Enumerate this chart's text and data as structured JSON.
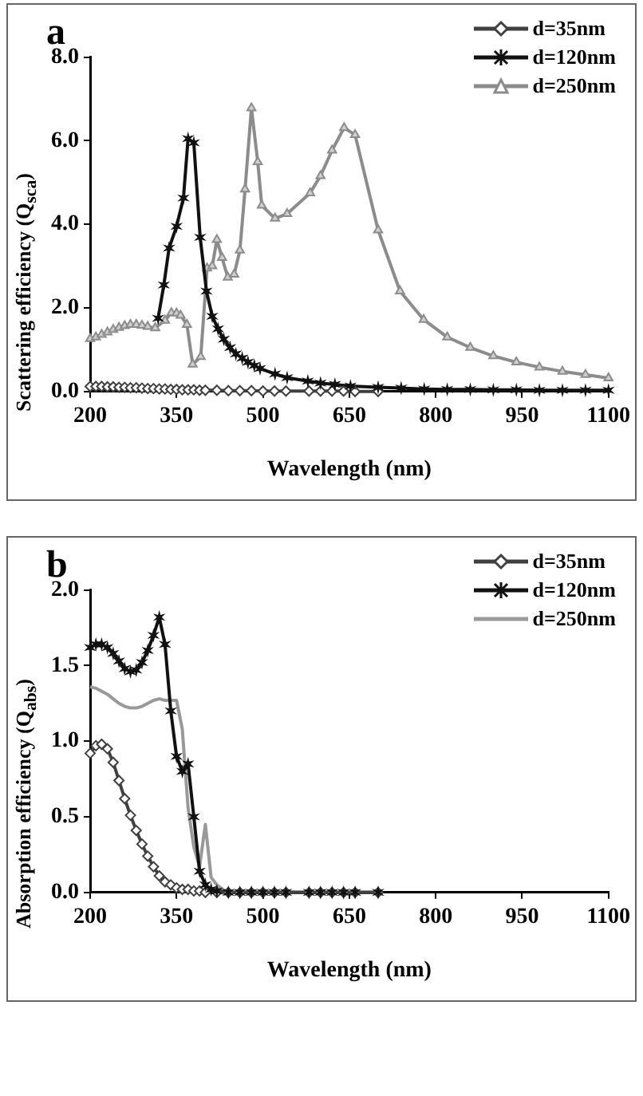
{
  "chart_data": [
    {
      "type": "line",
      "title": "a",
      "xlabel": "Wavelength (nm)",
      "ylabel": "Scattering efficiency (Q$_{sca}$)",
      "xlim": [
        200,
        1100
      ],
      "xticks": [
        200,
        350,
        500,
        650,
        800,
        950,
        1100
      ],
      "ylim": [
        0,
        8
      ],
      "yticks": [
        {
          "value": 0,
          "label": "0.0"
        },
        {
          "value": 2,
          "label": "2.0"
        },
        {
          "value": 4,
          "label": "4.0"
        },
        {
          "value": 6,
          "label": "6.0"
        },
        {
          "value": 8,
          "label": "8.0"
        }
      ],
      "grid": false,
      "legend": "top right",
      "series": [
        {
          "name": "d=35nm",
          "color": "#404040",
          "marker": "diamond",
          "x": [
            200,
            210,
            220,
            230,
            240,
            250,
            260,
            270,
            280,
            290,
            300,
            310,
            320,
            330,
            340,
            350,
            360,
            370,
            380,
            390,
            400,
            420,
            440,
            460,
            480,
            500,
            520,
            540,
            580,
            600,
            620,
            640,
            660,
            700
          ],
          "values": [
            0.12,
            0.12,
            0.12,
            0.11,
            0.11,
            0.1,
            0.1,
            0.09,
            0.09,
            0.08,
            0.07,
            0.07,
            0.06,
            0.06,
            0.05,
            0.05,
            0.04,
            0.04,
            0.04,
            0.03,
            0.03,
            0.03,
            0.02,
            0.02,
            0.02,
            0.01,
            0.01,
            0.01,
            0.01,
            0.01,
            0.01,
            0.01,
            0,
            0
          ]
        },
        {
          "name": "d=120nm",
          "color": "#111111",
          "marker": "cross",
          "x": [
            318,
            328,
            337,
            350,
            362,
            370,
            380,
            391,
            402,
            412,
            422,
            432,
            443,
            453,
            464,
            474,
            485,
            495,
            521,
            542,
            578,
            600,
            625,
            652,
            700,
            740,
            780,
            820,
            860,
            900,
            940,
            980,
            1020,
            1060,
            1100
          ],
          "values": [
            1.75,
            2.55,
            3.43,
            3.95,
            4.63,
            6.05,
            5.95,
            3.69,
            2.4,
            1.8,
            1.5,
            1.25,
            1.05,
            0.9,
            0.8,
            0.7,
            0.62,
            0.55,
            0.42,
            0.33,
            0.25,
            0.2,
            0.17,
            0.13,
            0.1,
            0.08,
            0.06,
            0.05,
            0.05,
            0.04,
            0.04,
            0.03,
            0.03,
            0.03,
            0.03
          ]
        },
        {
          "name": "d=250nm",
          "color": "#8c8c8c",
          "marker": "triangle",
          "x": [
            200,
            210,
            220,
            230,
            240,
            250,
            260,
            270,
            280,
            290,
            300,
            313,
            330,
            341,
            350,
            357,
            368,
            378,
            392,
            403,
            412,
            420,
            429,
            439,
            450,
            460,
            469,
            480,
            491,
            498,
            521,
            542,
            582,
            600,
            620,
            641,
            660,
            700,
            738,
            779,
            820,
            860,
            900,
            940,
            980,
            1020,
            1060,
            1100
          ],
          "values": [
            1.26,
            1.3,
            1.36,
            1.42,
            1.48,
            1.53,
            1.57,
            1.6,
            1.6,
            1.58,
            1.55,
            1.52,
            1.7,
            1.88,
            1.87,
            1.82,
            1.6,
            0.65,
            0.83,
            2.95,
            3.0,
            3.63,
            3.2,
            2.73,
            2.8,
            3.38,
            4.84,
            6.78,
            5.49,
            4.45,
            4.14,
            4.25,
            4.75,
            5.16,
            5.77,
            6.31,
            6.14,
            3.86,
            2.4,
            1.72,
            1.3,
            1.05,
            0.85,
            0.7,
            0.58,
            0.48,
            0.4,
            0.32
          ]
        }
      ]
    },
    {
      "type": "line",
      "title": "b",
      "xlabel": "Wavelength (nm)",
      "ylabel": "Absorption efficiency (Q$_{abs}$)",
      "xlim": [
        200,
        1100
      ],
      "xticks": [
        200,
        350,
        500,
        650,
        800,
        950,
        1100
      ],
      "ylim": [
        0,
        2
      ],
      "yticks": [
        {
          "value": 0,
          "label": "0.0"
        },
        {
          "value": 0.5,
          "label": "0.5"
        },
        {
          "value": 1,
          "label": "1.0"
        },
        {
          "value": 1.5,
          "label": "1.5"
        },
        {
          "value": 2,
          "label": "2.0"
        }
      ],
      "grid": false,
      "legend": "top right",
      "series": [
        {
          "name": "d=35nm",
          "color": "#404040",
          "marker": "diamond",
          "x": [
            200,
            210,
            220,
            230,
            240,
            250,
            260,
            270,
            280,
            290,
            300,
            310,
            320,
            330,
            340,
            350,
            360,
            370,
            380,
            390,
            400,
            420,
            440,
            460,
            480,
            500,
            520,
            540,
            580,
            600,
            620,
            640,
            660,
            700
          ],
          "values": [
            0.92,
            0.97,
            0.98,
            0.95,
            0.86,
            0.74,
            0.62,
            0.51,
            0.41,
            0.32,
            0.24,
            0.17,
            0.11,
            0.07,
            0.05,
            0.03,
            0.02,
            0.02,
            0.01,
            0.01,
            0,
            0,
            0,
            0,
            0,
            0,
            0,
            0,
            0,
            0,
            0,
            0,
            0,
            0
          ]
        },
        {
          "name": "d=120nm",
          "color": "#111111",
          "marker": "cross",
          "x": [
            200,
            210,
            220,
            230,
            240,
            250,
            260,
            270,
            280,
            290,
            300,
            310,
            320,
            330,
            340,
            350,
            360,
            370,
            380,
            390,
            400,
            410,
            420,
            440,
            460,
            480,
            500,
            520,
            540,
            580,
            600,
            620,
            640,
            660,
            700
          ],
          "values": [
            1.62,
            1.64,
            1.64,
            1.62,
            1.58,
            1.53,
            1.48,
            1.46,
            1.47,
            1.52,
            1.6,
            1.7,
            1.82,
            1.64,
            1.2,
            0.9,
            0.8,
            0.85,
            0.5,
            0.14,
            0.05,
            0.02,
            0.01,
            0,
            0,
            0,
            0,
            0,
            0,
            0,
            0,
            0,
            0,
            0,
            0
          ]
        },
        {
          "name": "d=250nm",
          "color": "#999999",
          "marker": "none",
          "x": [
            200,
            210,
            220,
            230,
            240,
            250,
            260,
            270,
            280,
            290,
            300,
            310,
            320,
            330,
            340,
            350,
            360,
            370,
            380,
            390,
            400,
            410,
            420,
            430,
            440,
            460,
            480,
            500,
            520,
            540,
            580,
            600,
            620,
            640,
            660,
            700
          ],
          "values": [
            1.36,
            1.35,
            1.33,
            1.31,
            1.28,
            1.25,
            1.23,
            1.22,
            1.22,
            1.23,
            1.25,
            1.27,
            1.28,
            1.27,
            1.27,
            1.27,
            1.08,
            0.56,
            0.3,
            0.17,
            0.45,
            0.1,
            0.05,
            0.02,
            0,
            0,
            0,
            0,
            0,
            0,
            0,
            0,
            0,
            0,
            0,
            0
          ]
        }
      ]
    }
  ]
}
